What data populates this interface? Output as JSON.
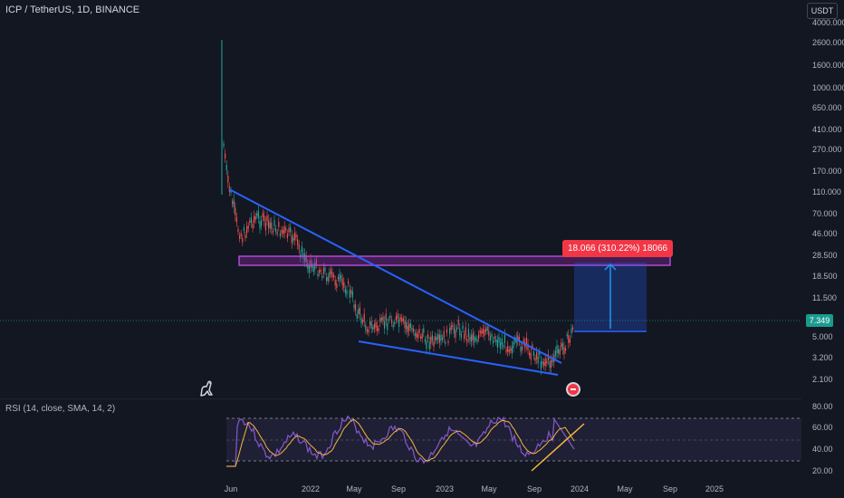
{
  "header": {
    "symbol": "ICP / TetherUS, 1D, BINANCE",
    "currency": "USDT"
  },
  "price_axis": {
    "labels": [
      "4000.000",
      "2600.000",
      "1600.000",
      "1000.000",
      "650.000",
      "410.000",
      "270.000",
      "170.000",
      "110.000",
      "70.000",
      "46.000",
      "28.500",
      "18.500",
      "11.500",
      "7.349",
      "5.000",
      "3.200",
      "2.100"
    ]
  },
  "current_price": "7.349",
  "measure": {
    "label": "18.066 (310.22%) 18066"
  },
  "rsi": {
    "title": "RSI (14, close, SMA, 14, 2)",
    "labels": [
      "80.00",
      "60.00",
      "40.00",
      "20.00"
    ]
  },
  "time_axis": {
    "labels": [
      "Jun",
      "2022",
      "May",
      "Sep",
      "2023",
      "May",
      "Sep",
      "2024",
      "May",
      "Sep",
      "2025"
    ]
  },
  "colors": {
    "background": "#131722",
    "trendline": "#2962ff",
    "zone": "#9c27b0",
    "measure": "#2196f3",
    "rsi_line": "#7e57c2",
    "rsi_ma": "#f2b43c",
    "up_candle": "#26a69a",
    "down_candle": "#ef5350"
  },
  "icons": {
    "logo": "tradingview-dino-icon",
    "event": "us-flag-event-icon"
  }
}
